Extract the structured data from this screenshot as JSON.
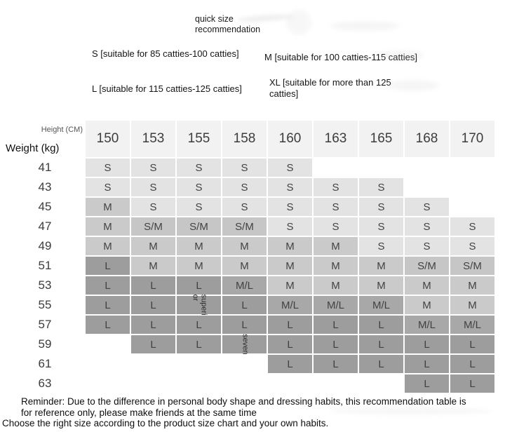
{
  "header": {
    "title": "quick size recommendation"
  },
  "legend": {
    "s": "S [suitable for 85 catties-100 catties]",
    "m": "M [suitable for 100 catties-115 catties]",
    "l": "L [suitable for 115 catties-125 catties]",
    "xl": "XL [suitable for more than 125 catties]"
  },
  "chart_data": {
    "type": "table",
    "title": "quick size recommendation",
    "height_label": "Height (CM)",
    "weight_label": "Weight (kg)",
    "columns": [
      "150",
      "153",
      "155",
      "158",
      "160",
      "163",
      "165",
      "168",
      "170"
    ],
    "rows": [
      {
        "weight": "41",
        "cells": [
          "S",
          "S",
          "S",
          "S",
          "S",
          null,
          null,
          null,
          null
        ]
      },
      {
        "weight": "43",
        "cells": [
          "S",
          "S",
          "S",
          "S",
          "S",
          "S",
          "S",
          null,
          null
        ]
      },
      {
        "weight": "45",
        "cells": [
          "M",
          "S",
          "S",
          "S",
          "S",
          "S",
          "S",
          "S",
          null
        ]
      },
      {
        "weight": "47",
        "cells": [
          "M",
          "S/M",
          "S/M",
          "S/M",
          "S",
          "S",
          "S",
          "S",
          "S"
        ]
      },
      {
        "weight": "49",
        "cells": [
          "M",
          "M",
          "M",
          "M",
          "M",
          "M",
          "S",
          "S",
          "S"
        ]
      },
      {
        "weight": "51",
        "cells": [
          "L",
          "M",
          "M",
          "M",
          "M",
          "M",
          "M",
          "S/M",
          "S/M"
        ]
      },
      {
        "weight": "53",
        "cells": [
          "L",
          "L",
          "L",
          "M/L",
          "M",
          "M",
          "M",
          "M",
          "M"
        ]
      },
      {
        "weight": "55",
        "cells": [
          "L",
          "L",
          "L",
          "L",
          "M/L",
          "M/L",
          "M/L",
          "M",
          "M"
        ]
      },
      {
        "weight": "57",
        "cells": [
          "L",
          "L",
          "L",
          "L",
          "L",
          "L",
          "L",
          "M/L",
          "M/L"
        ]
      },
      {
        "weight": "59",
        "cells": [
          null,
          "L",
          "L",
          "L",
          "L",
          "L",
          "L",
          "L",
          "L"
        ]
      },
      {
        "weight": "61",
        "cells": [
          null,
          null,
          null,
          null,
          "L",
          "L",
          "L",
          "L",
          "L"
        ]
      },
      {
        "weight": "63",
        "cells": [
          null,
          null,
          null,
          null,
          null,
          null,
          null,
          "L",
          "L"
        ]
      }
    ],
    "overlay_texts": [
      {
        "weight": "55",
        "column": "155",
        "text": "superi\nor"
      },
      {
        "weight": "59",
        "column": "158",
        "text": "seven"
      }
    ],
    "colors": {
      "S": "#e3e3e3",
      "S/M": "#c6c6c6",
      "M": "#cacaca",
      "M/L": "#a8a8a8",
      "L": "#9d9d9d"
    }
  },
  "footer": {
    "reminder": "Reminder: Due to the difference in personal body shape and dressing habits, this recommendation table is for reference only, please make friends at the same time",
    "choose": "Choose the right size according to the product size chart and your own habits."
  }
}
